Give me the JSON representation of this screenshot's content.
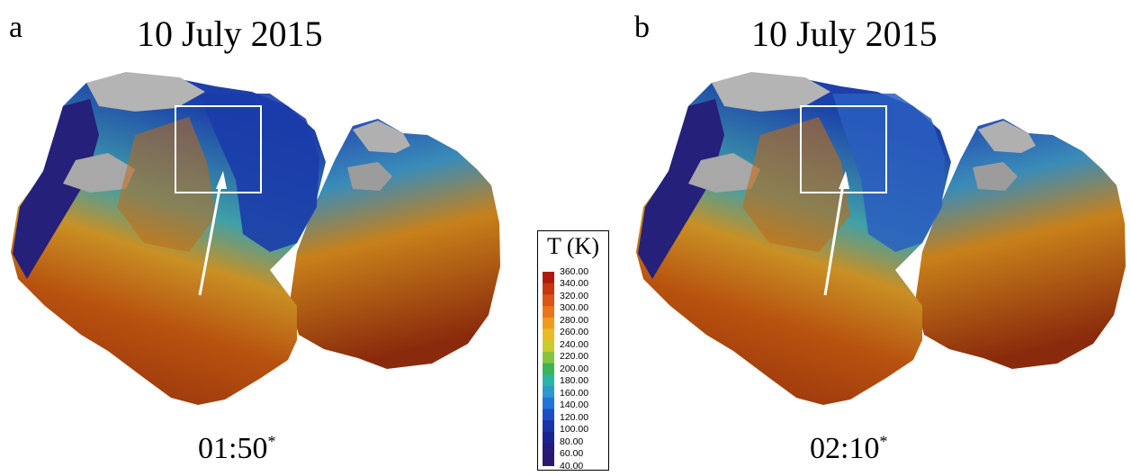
{
  "panels": [
    {
      "letter": "a",
      "date": "10 July 2015",
      "time": "01:50",
      "time_marker": "*"
    },
    {
      "letter": "b",
      "date": "10 July 2015",
      "time": "02:10",
      "time_marker": "*"
    }
  ],
  "legend": {
    "title": "T (K)",
    "ticks": [
      "360.00",
      "340.00",
      "320.00",
      "300.00",
      "280.00",
      "260.00",
      "240.00",
      "220.00",
      "200.00",
      "180.00",
      "160.00",
      "140.00",
      "120.00",
      "100.00",
      "80.00",
      "60.00",
      "40.00"
    ],
    "colormap": [
      "#b01a0c",
      "#c8360f",
      "#dd5414",
      "#ec7418",
      "#f09a1c",
      "#e8bc22",
      "#c8cc2c",
      "#86c43c",
      "#3cb458",
      "#2ab6a2",
      "#2c98d2",
      "#2274d8",
      "#1a4ec6",
      "#1a34a8",
      "#1c2290",
      "#241a78",
      "#2a1870"
    ]
  },
  "colors": {
    "hot": "#9e2a0c",
    "warm": "#cf6a18",
    "mid": "#e0c030",
    "cool": "#30a0c8",
    "cold": "#1c3fae",
    "coldest": "#241e78",
    "shadow": "#a8a8a8",
    "box": "#ffffff"
  }
}
